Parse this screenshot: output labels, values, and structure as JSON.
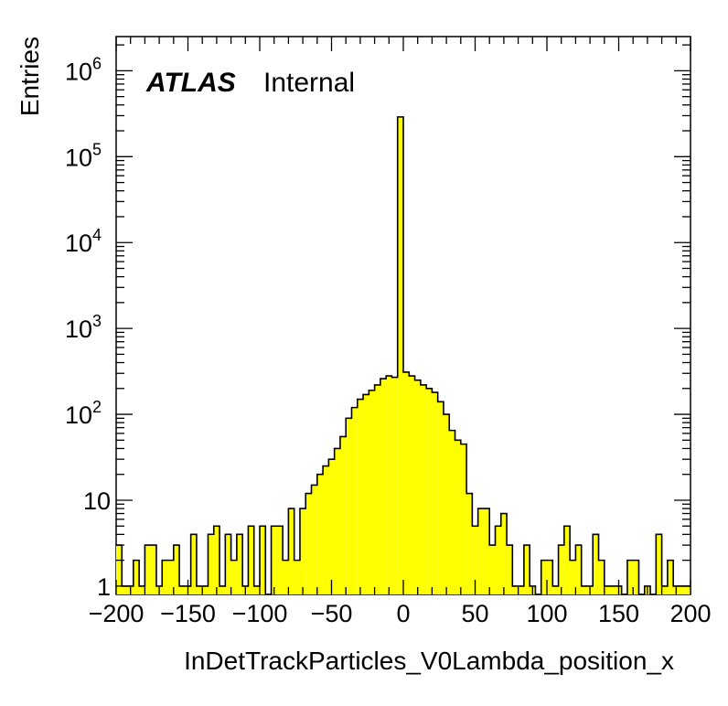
{
  "chart_data": {
    "type": "histogram",
    "xlabel": "InDetTrackParticles_V0Lambda_position_x",
    "ylabel": "Entries",
    "annotation": {
      "experiment": "ATLAS",
      "status": "Internal"
    },
    "xlim": [
      -200,
      200
    ],
    "ylim": [
      0.8,
      2500000
    ],
    "y_scale": "log",
    "fill_color": "#ffff00",
    "line_color": "#000000",
    "bin_width": 4,
    "bin_edges_start": -200,
    "x_tick_labels": [
      "−200",
      "−150",
      "−100",
      "−50",
      "0",
      "50",
      "100",
      "150",
      "200"
    ],
    "y_tick_labels": [
      {
        "value": 1,
        "base": "1",
        "exp": ""
      },
      {
        "value": 10,
        "base": "10",
        "exp": ""
      },
      {
        "value": 100,
        "base": "10",
        "exp": "2"
      },
      {
        "value": 1000,
        "base": "10",
        "exp": "3"
      },
      {
        "value": 10000,
        "base": "10",
        "exp": "4"
      },
      {
        "value": 100000,
        "base": "10",
        "exp": "5"
      },
      {
        "value": 1000000,
        "base": "10",
        "exp": "6"
      }
    ],
    "values": [
      3,
      1,
      1,
      2,
      1,
      3,
      3,
      1,
      2,
      2,
      3,
      1,
      1,
      4,
      1,
      1,
      4,
      5,
      1,
      4,
      2,
      4,
      1,
      5,
      1,
      5,
      0,
      5,
      5,
      2,
      8,
      2,
      8,
      12,
      15,
      20,
      25,
      30,
      40,
      55,
      90,
      120,
      150,
      170,
      190,
      220,
      260,
      280,
      270,
      290000,
      310,
      280,
      250,
      220,
      200,
      180,
      140,
      100,
      65,
      50,
      45,
      12,
      5,
      8,
      8,
      3,
      5,
      7,
      3,
      1,
      1,
      3,
      1,
      0,
      2,
      2,
      1,
      3,
      5,
      2,
      3,
      1,
      1,
      4,
      2,
      1,
      1,
      1,
      0,
      2,
      2,
      0,
      1,
      0,
      4,
      1,
      2,
      1,
      1,
      1
    ]
  }
}
